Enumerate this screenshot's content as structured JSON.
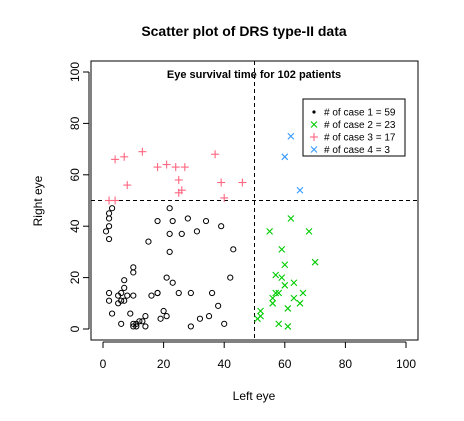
{
  "chart_data": {
    "type": "scatter",
    "title": "Scatter plot of DRS type-II data",
    "subtitle": "Eye survival time for 102 patients",
    "xlabel": "Left eye",
    "ylabel": "Right eye",
    "xlim": [
      0,
      100
    ],
    "ylim": [
      0,
      100
    ],
    "xticks": [
      "0",
      "20",
      "40",
      "60",
      "80",
      "100"
    ],
    "yticks": [
      "0",
      "20",
      "40",
      "60",
      "80",
      "100"
    ],
    "reference_lines": {
      "x": 50,
      "y": 50
    },
    "legend_position": "top-right",
    "series": [
      {
        "name": "# of case 1 = 59",
        "marker": "circle",
        "color": "#000000",
        "points": [
          [
            2,
            45
          ],
          [
            2,
            43
          ],
          [
            3,
            47
          ],
          [
            2,
            40
          ],
          [
            1,
            38
          ],
          [
            2,
            35
          ],
          [
            2,
            14
          ],
          [
            2,
            11
          ],
          [
            3,
            6
          ],
          [
            5,
            13
          ],
          [
            5,
            10
          ],
          [
            6,
            11
          ],
          [
            6,
            14
          ],
          [
            6,
            2
          ],
          [
            7,
            19
          ],
          [
            7,
            16
          ],
          [
            7,
            11
          ],
          [
            8,
            13
          ],
          [
            9,
            6
          ],
          [
            10,
            22
          ],
          [
            10,
            24
          ],
          [
            10,
            13
          ],
          [
            10,
            2
          ],
          [
            10,
            1
          ],
          [
            11,
            1
          ],
          [
            11,
            2
          ],
          [
            12,
            3
          ],
          [
            13,
            3
          ],
          [
            14,
            5
          ],
          [
            14,
            1
          ],
          [
            15,
            34
          ],
          [
            16,
            13
          ],
          [
            18,
            42
          ],
          [
            18,
            14
          ],
          [
            18,
            14
          ],
          [
            19,
            4
          ],
          [
            20,
            7
          ],
          [
            21,
            20
          ],
          [
            21,
            5
          ],
          [
            22,
            47
          ],
          [
            22,
            37
          ],
          [
            22,
            30
          ],
          [
            23,
            42
          ],
          [
            23,
            18
          ],
          [
            25,
            14
          ],
          [
            26,
            37
          ],
          [
            28,
            43
          ],
          [
            29,
            1
          ],
          [
            29,
            14
          ],
          [
            31,
            38
          ],
          [
            32,
            4
          ],
          [
            34,
            42
          ],
          [
            35,
            5
          ],
          [
            36,
            14
          ],
          [
            38,
            9
          ],
          [
            39,
            40
          ],
          [
            40,
            2
          ],
          [
            42,
            20
          ],
          [
            43,
            31
          ]
        ]
      },
      {
        "name": "# of case 2 = 23",
        "marker": "x",
        "color": "#00cc00",
        "points": [
          [
            51,
            4
          ],
          [
            52,
            5
          ],
          [
            52,
            7
          ],
          [
            55,
            38
          ],
          [
            56,
            10
          ],
          [
            56,
            12
          ],
          [
            57,
            14
          ],
          [
            57,
            21
          ],
          [
            58,
            2
          ],
          [
            58,
            14
          ],
          [
            59,
            20
          ],
          [
            59,
            31
          ],
          [
            60,
            25
          ],
          [
            60,
            17
          ],
          [
            61,
            8
          ],
          [
            61,
            1
          ],
          [
            62,
            43
          ],
          [
            63,
            12
          ],
          [
            63,
            18
          ],
          [
            65,
            10
          ],
          [
            66,
            14
          ],
          [
            68,
            38
          ],
          [
            70,
            26
          ]
        ]
      },
      {
        "name": "# of case 3 = 17",
        "marker": "plus",
        "color": "#ff6680",
        "points": [
          [
            2,
            50
          ],
          [
            4,
            50
          ],
          [
            4,
            66
          ],
          [
            7,
            67
          ],
          [
            8,
            56
          ],
          [
            13,
            69
          ],
          [
            18,
            63
          ],
          [
            21,
            64
          ],
          [
            24,
            63
          ],
          [
            25,
            58
          ],
          [
            25,
            53
          ],
          [
            26,
            54
          ],
          [
            27,
            63
          ],
          [
            37,
            68
          ],
          [
            39,
            57
          ],
          [
            40,
            51
          ],
          [
            46,
            57
          ]
        ]
      },
      {
        "name": "# of case 4 = 3",
        "marker": "x",
        "color": "#3399ff",
        "points": [
          [
            60,
            67
          ],
          [
            62,
            75
          ],
          [
            65,
            54
          ]
        ]
      }
    ]
  }
}
